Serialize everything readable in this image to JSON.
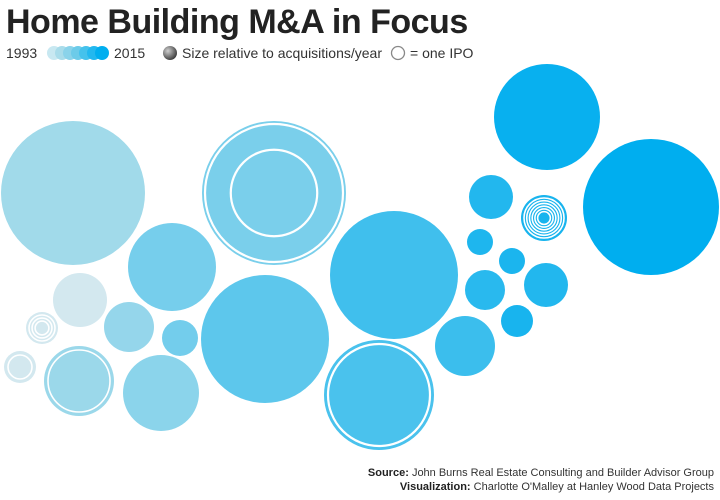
{
  "title": "Home Building M&A in Focus",
  "legend": {
    "start_year": "1993",
    "end_year": "2015",
    "size_label": "Size relative to acquisitions/year",
    "ipo_label": "= one IPO"
  },
  "colors": {
    "1993": "#a9dcea",
    "2015": "#00aeef",
    "ipo_ring": "#ffffff",
    "text": "#222222"
  },
  "chart_data": {
    "type": "bubble",
    "title": "Home Building M&A in Focus",
    "encoding": {
      "color": "year (light 1993 to saturated 2015)",
      "size": "relative to acquisitions/year",
      "rings": "one white ring = one IPO"
    },
    "bubbles": [
      {
        "id": 1,
        "relative_size": 72,
        "ipos": 0,
        "year_index": 0.05
      },
      {
        "id": 2,
        "relative_size": 27,
        "ipos": 0,
        "year_index": 0.0
      },
      {
        "id": 3,
        "relative_size": 16,
        "ipos": 3,
        "year_index": 0.0
      },
      {
        "id": 4,
        "relative_size": 16,
        "ipos": 1,
        "year_index": 0.0
      },
      {
        "id": 5,
        "relative_size": 35,
        "ipos": 1,
        "year_index": 0.08
      },
      {
        "id": 6,
        "relative_size": 25,
        "ipos": 0,
        "year_index": 0.12
      },
      {
        "id": 7,
        "relative_size": 38,
        "ipos": 0,
        "year_index": 0.18
      },
      {
        "id": 8,
        "relative_size": 44,
        "ipos": 0,
        "year_index": 0.3
      },
      {
        "id": 9,
        "relative_size": 18,
        "ipos": 0,
        "year_index": 0.32
      },
      {
        "id": 10,
        "relative_size": 72,
        "ipos": 2,
        "year_index": 0.28
      },
      {
        "id": 11,
        "relative_size": 64,
        "ipos": 0,
        "year_index": 0.45
      },
      {
        "id": 12,
        "relative_size": 64,
        "ipos": 0,
        "year_index": 0.62
      },
      {
        "id": 13,
        "relative_size": 55,
        "ipos": 1,
        "year_index": 0.56
      },
      {
        "id": 14,
        "relative_size": 30,
        "ipos": 0,
        "year_index": 0.65
      },
      {
        "id": 15,
        "relative_size": 22,
        "ipos": 0,
        "year_index": 0.8
      },
      {
        "id": 16,
        "relative_size": 13,
        "ipos": 0,
        "year_index": 0.82
      },
      {
        "id": 17,
        "relative_size": 13,
        "ipos": 0,
        "year_index": 0.84
      },
      {
        "id": 18,
        "relative_size": 20,
        "ipos": 0,
        "year_index": 0.76
      },
      {
        "id": 19,
        "relative_size": 23,
        "ipos": 6,
        "year_index": 0.86
      },
      {
        "id": 20,
        "relative_size": 22,
        "ipos": 0,
        "year_index": 0.8
      },
      {
        "id": 21,
        "relative_size": 16,
        "ipos": 0,
        "year_index": 0.86
      },
      {
        "id": 22,
        "relative_size": 53,
        "ipos": 0,
        "year_index": 0.95
      },
      {
        "id": 23,
        "relative_size": 68,
        "ipos": 0,
        "year_index": 1.0
      }
    ]
  },
  "footer": {
    "source_label": "Source:",
    "source_text": "John Burns Real Estate Consulting and Builder Advisor Group",
    "viz_label": "Visualization:",
    "viz_text": "Charlotte O'Malley at Hanley Wood Data Projects"
  }
}
